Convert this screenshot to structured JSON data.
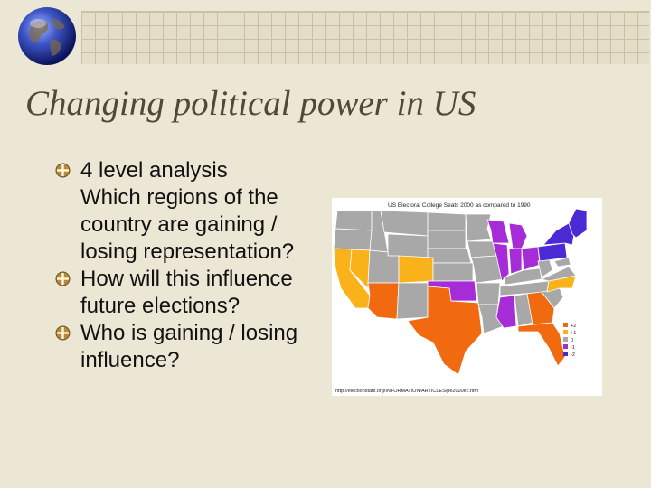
{
  "slide": {
    "title": "Changing political power in US",
    "bullets": [
      {
        "lines": [
          "4 level analysis",
          "Which regions of the country are gaining / losing representation?"
        ]
      },
      {
        "lines": [
          "How will this influence future elections?"
        ]
      },
      {
        "lines": [
          "Who is gaining / losing influence?"
        ]
      }
    ]
  },
  "map_image": {
    "caption": "US Electoral College Seats 2000 as compared to 1990",
    "source": "http://electionstats.org/INFORMATION/ARTICLES/pe2000ec.htm",
    "legend": [
      {
        "label": "+2",
        "color": "#f26a0f"
      },
      {
        "label": "+1",
        "color": "#f9b21a"
      },
      {
        "label": "0",
        "color": "#a8a8a8"
      },
      {
        "label": "-1",
        "color": "#a62cd8"
      },
      {
        "label": "-2",
        "color": "#4b2ad6"
      }
    ],
    "colors": {
      "gain2": "#f26a0f",
      "gain1": "#f9b21a",
      "nochange": "#a8a8a8",
      "lose1": "#a62cd8",
      "lose2": "#4b2ad6"
    }
  }
}
